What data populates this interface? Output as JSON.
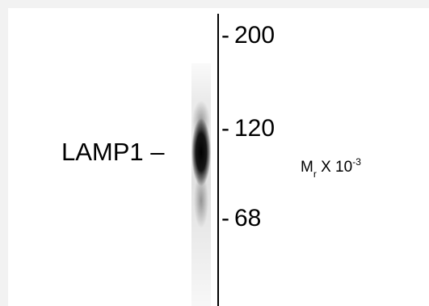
{
  "blot": {
    "band_label": "LAMP1 –",
    "markers": [
      {
        "label": "200",
        "tick": "-"
      },
      {
        "label": "120",
        "tick": "-"
      },
      {
        "label": "68",
        "tick": "-"
      }
    ],
    "unit": {
      "base": "M",
      "subscript": "r",
      "middle": " X 10",
      "superscript": "-3"
    }
  },
  "colors": {
    "band": "#000000",
    "background": "#ffffff",
    "outer_border": "#f2f2f2"
  }
}
